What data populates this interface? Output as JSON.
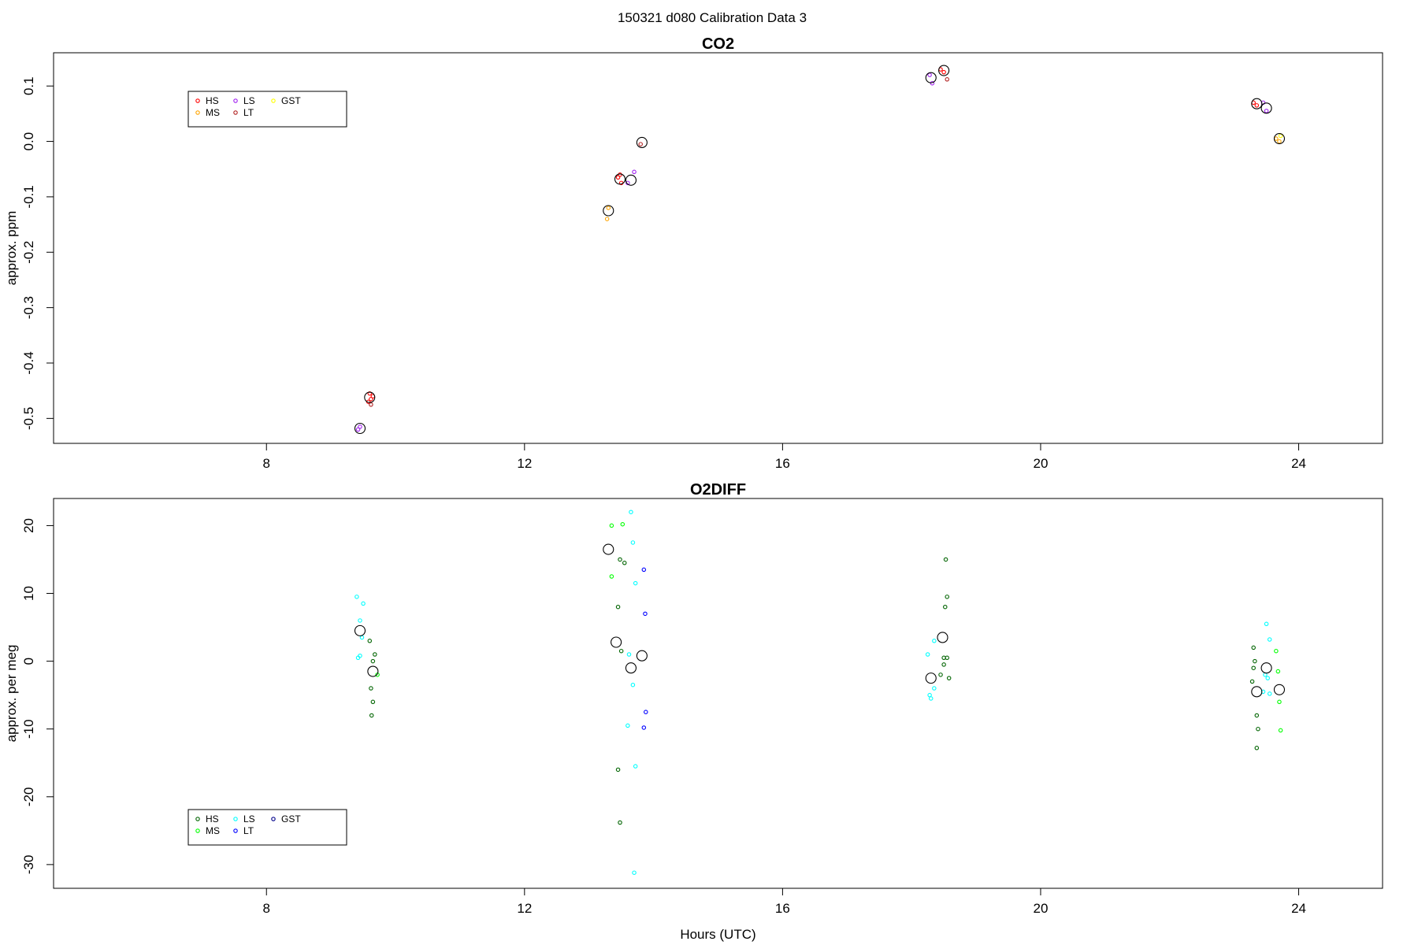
{
  "figure_title": "150321   d080   Calibration Data 3",
  "chart_data": [
    {
      "type": "scatter",
      "title": "CO2",
      "xlabel": "",
      "ylabel": "approx. ppm",
      "xlim": [
        4.7,
        25.3
      ],
      "ylim": [
        -0.545,
        0.16
      ],
      "xticks": [
        8,
        12,
        16,
        20,
        24
      ],
      "yticks": [
        -0.5,
        -0.4,
        -0.3,
        -0.2,
        -0.1,
        0.0,
        0.1
      ],
      "yticklabels": [
        "-0.5",
        "-0.4",
        "-0.3",
        "-0.2",
        "-0.1",
        "0.0",
        "0.1"
      ],
      "legend": {
        "position": "top-left",
        "entries": [
          {
            "label": "HS",
            "color": "#ff0000"
          },
          {
            "label": "MS",
            "color": "#ffa500"
          },
          {
            "label": "LS",
            "color": "#a020f0"
          },
          {
            "label": "LT",
            "color": "#b22222"
          },
          {
            "label": "GST",
            "color": "#ffff00"
          }
        ]
      },
      "series": [
        {
          "name": "HS",
          "color": "#ff0000",
          "points": [
            {
              "x": 9.6,
              "y": -0.455
            },
            {
              "x": 9.62,
              "y": -0.465
            },
            {
              "x": 9.58,
              "y": -0.47
            },
            {
              "x": 9.65,
              "y": -0.46
            },
            {
              "x": 13.45,
              "y": -0.065
            },
            {
              "x": 13.5,
              "y": -0.075
            },
            {
              "x": 13.48,
              "y": -0.06
            },
            {
              "x": 18.45,
              "y": 0.13
            },
            {
              "x": 18.5,
              "y": 0.125
            },
            {
              "x": 23.3,
              "y": 0.07
            },
            {
              "x": 23.35,
              "y": 0.065
            }
          ]
        },
        {
          "name": "MS",
          "color": "#ffa500",
          "points": [
            {
              "x": 13.28,
              "y": -0.14
            },
            {
              "x": 13.3,
              "y": -0.12
            },
            {
              "x": 23.65,
              "y": 0.005
            },
            {
              "x": 23.7,
              "y": 0.0
            }
          ]
        },
        {
          "name": "LS",
          "color": "#a020f0",
          "points": [
            {
              "x": 9.42,
              "y": -0.52
            },
            {
              "x": 9.45,
              "y": -0.515
            },
            {
              "x": 13.6,
              "y": -0.075
            },
            {
              "x": 13.7,
              "y": -0.055
            },
            {
              "x": 18.28,
              "y": 0.12
            },
            {
              "x": 18.32,
              "y": 0.105
            },
            {
              "x": 23.45,
              "y": 0.07
            },
            {
              "x": 23.5,
              "y": 0.055
            }
          ]
        },
        {
          "name": "LT",
          "color": "#b22222",
          "points": [
            {
              "x": 13.8,
              "y": -0.005
            },
            {
              "x": 18.55,
              "y": 0.112
            },
            {
              "x": 9.62,
              "y": -0.475
            }
          ]
        },
        {
          "name": "GST",
          "color": "#ffff00",
          "points": [
            {
              "x": 23.72,
              "y": 0.01
            }
          ]
        }
      ],
      "means": [
        {
          "x": 9.6,
          "y": -0.462
        },
        {
          "x": 9.45,
          "y": -0.518
        },
        {
          "x": 13.3,
          "y": -0.125
        },
        {
          "x": 13.48,
          "y": -0.068
        },
        {
          "x": 13.65,
          "y": -0.07
        },
        {
          "x": 13.82,
          "y": -0.002
        },
        {
          "x": 18.3,
          "y": 0.115
        },
        {
          "x": 18.5,
          "y": 0.128
        },
        {
          "x": 23.35,
          "y": 0.068
        },
        {
          "x": 23.5,
          "y": 0.06
        },
        {
          "x": 23.7,
          "y": 0.005
        }
      ]
    },
    {
      "type": "scatter",
      "title": "O2DIFF",
      "xlabel": "Hours (UTC)",
      "ylabel": "approx. per meg",
      "xlim": [
        4.7,
        25.3
      ],
      "ylim": [
        -33.5,
        24.0
      ],
      "xticks": [
        8,
        12,
        16,
        20,
        24
      ],
      "yticks": [
        -30,
        -20,
        -10,
        0,
        10,
        20
      ],
      "yticklabels": [
        "-30",
        "-20",
        "-10",
        "0",
        "10",
        "20"
      ],
      "legend": {
        "position": "bottom-left",
        "entries": [
          {
            "label": "HS",
            "color": "#006400"
          },
          {
            "label": "MS",
            "color": "#00ff00"
          },
          {
            "label": "LS",
            "color": "#00ffff"
          },
          {
            "label": "LT",
            "color": "#0000ff"
          },
          {
            "label": "GST",
            "color": "#00008b"
          }
        ]
      },
      "series": [
        {
          "name": "HS",
          "color": "#006400",
          "points": [
            {
              "x": 9.6,
              "y": 3.0
            },
            {
              "x": 9.65,
              "y": 0.0
            },
            {
              "x": 9.62,
              "y": -4.0
            },
            {
              "x": 9.65,
              "y": -6.0
            },
            {
              "x": 9.63,
              "y": -8.0
            },
            {
              "x": 9.68,
              "y": 1.0
            },
            {
              "x": 13.45,
              "y": 8.0
            },
            {
              "x": 13.48,
              "y": 15.0
            },
            {
              "x": 13.55,
              "y": 14.5
            },
            {
              "x": 13.45,
              "y": -16.0
            },
            {
              "x": 13.48,
              "y": -23.8
            },
            {
              "x": 13.5,
              "y": 1.5
            },
            {
              "x": 18.5,
              "y": 0.5
            },
            {
              "x": 18.45,
              "y": -2.0
            },
            {
              "x": 18.5,
              "y": -0.5
            },
            {
              "x": 18.55,
              "y": 0.5
            },
            {
              "x": 18.58,
              "y": -2.5
            },
            {
              "x": 18.52,
              "y": 8.0
            },
            {
              "x": 18.55,
              "y": 9.5
            },
            {
              "x": 18.53,
              "y": 15.0
            },
            {
              "x": 23.3,
              "y": 2.0
            },
            {
              "x": 23.32,
              "y": 0.0
            },
            {
              "x": 23.3,
              "y": -1.0
            },
            {
              "x": 23.28,
              "y": -3.0
            },
            {
              "x": 23.35,
              "y": -8.0
            },
            {
              "x": 23.37,
              "y": -10.0
            },
            {
              "x": 23.35,
              "y": -12.8
            }
          ]
        },
        {
          "name": "MS",
          "color": "#00ff00",
          "points": [
            {
              "x": 9.72,
              "y": -2.0
            },
            {
              "x": 13.35,
              "y": 20.0
            },
            {
              "x": 13.52,
              "y": 20.2
            },
            {
              "x": 13.35,
              "y": 12.5
            },
            {
              "x": 23.65,
              "y": 1.5
            },
            {
              "x": 23.68,
              "y": -1.5
            },
            {
              "x": 23.7,
              "y": -6.0
            },
            {
              "x": 23.72,
              "y": -10.2
            }
          ]
        },
        {
          "name": "LS",
          "color": "#00ffff",
          "points": [
            {
              "x": 9.4,
              "y": 9.5
            },
            {
              "x": 9.5,
              "y": 8.5
            },
            {
              "x": 9.45,
              "y": 6.0
            },
            {
              "x": 9.48,
              "y": 3.5
            },
            {
              "x": 9.42,
              "y": 0.5
            },
            {
              "x": 9.45,
              "y": 0.8
            },
            {
              "x": 13.65,
              "y": 22.0
            },
            {
              "x": 13.68,
              "y": 17.5
            },
            {
              "x": 13.72,
              "y": 11.5
            },
            {
              "x": 13.62,
              "y": 1.0
            },
            {
              "x": 13.68,
              "y": -3.5
            },
            {
              "x": 13.6,
              "y": -9.5
            },
            {
              "x": 13.72,
              "y": -15.5
            },
            {
              "x": 13.7,
              "y": -31.2
            },
            {
              "x": 18.25,
              "y": 1.0
            },
            {
              "x": 18.35,
              "y": 3.0
            },
            {
              "x": 18.28,
              "y": -5.0
            },
            {
              "x": 18.3,
              "y": -5.5
            },
            {
              "x": 18.35,
              "y": -4.0
            },
            {
              "x": 23.5,
              "y": 5.5
            },
            {
              "x": 23.55,
              "y": 3.2
            },
            {
              "x": 23.48,
              "y": -2.0
            },
            {
              "x": 23.52,
              "y": -2.5
            },
            {
              "x": 23.45,
              "y": -4.5
            },
            {
              "x": 23.55,
              "y": -4.8
            }
          ]
        },
        {
          "name": "LT",
          "color": "#0000ff",
          "points": [
            {
              "x": 13.85,
              "y": 13.5
            },
            {
              "x": 13.87,
              "y": 7.0
            },
            {
              "x": 13.88,
              "y": -7.5
            },
            {
              "x": 13.85,
              "y": -9.8
            }
          ]
        },
        {
          "name": "GST",
          "color": "#00008b",
          "points": []
        }
      ],
      "means": [
        {
          "x": 9.45,
          "y": 4.5
        },
        {
          "x": 9.65,
          "y": -1.5
        },
        {
          "x": 13.3,
          "y": 16.5
        },
        {
          "x": 13.42,
          "y": 2.8
        },
        {
          "x": 13.65,
          "y": -1.0
        },
        {
          "x": 13.82,
          "y": 0.8
        },
        {
          "x": 18.3,
          "y": -2.5
        },
        {
          "x": 18.48,
          "y": 3.5
        },
        {
          "x": 23.35,
          "y": -4.5
        },
        {
          "x": 23.5,
          "y": -1.0
        },
        {
          "x": 23.7,
          "y": -4.2
        }
      ]
    }
  ]
}
